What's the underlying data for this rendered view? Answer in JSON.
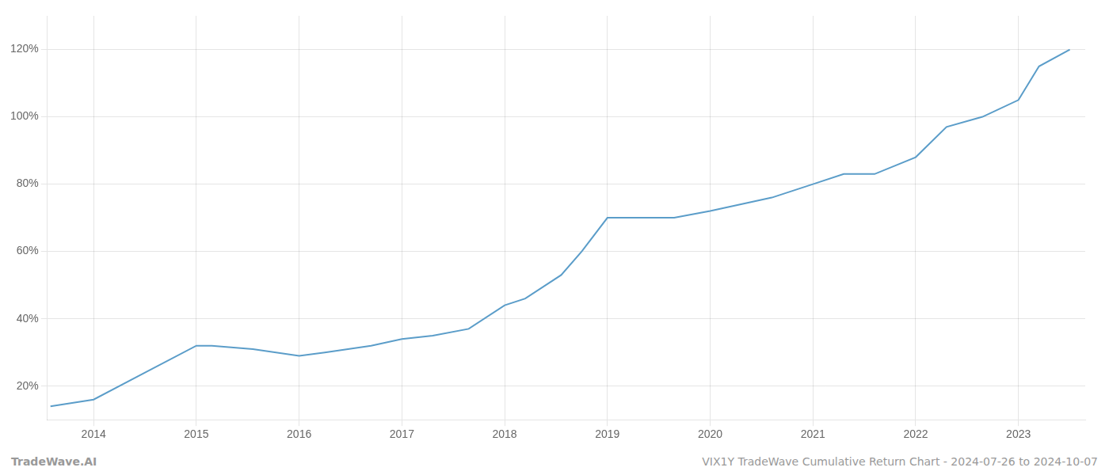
{
  "chart_data": {
    "type": "line",
    "x": [
      2013.58,
      2014.0,
      2014.5,
      2015.0,
      2015.15,
      2015.55,
      2016.0,
      2016.25,
      2016.7,
      2017.0,
      2017.3,
      2017.65,
      2018.0,
      2018.2,
      2018.55,
      2018.75,
      2019.0,
      2019.3,
      2019.65,
      2020.0,
      2020.3,
      2020.6,
      2021.0,
      2021.3,
      2021.6,
      2022.0,
      2022.3,
      2022.65,
      2023.0,
      2023.2,
      2023.5
    ],
    "values": [
      14,
      16,
      24,
      32,
      32,
      31,
      29,
      30,
      32,
      34,
      35,
      37,
      44,
      46,
      53,
      60,
      70,
      70,
      70,
      72,
      74,
      76,
      80,
      83,
      83,
      88,
      97,
      100,
      105,
      115,
      120
    ],
    "color": "#5b9dc9",
    "xlim": [
      2013.55,
      2023.65
    ],
    "xticks": [
      2014,
      2015,
      2016,
      2017,
      2018,
      2019,
      2020,
      2021,
      2022,
      2023
    ],
    "ylim": [
      10,
      130
    ],
    "yticks": [
      {
        "value": 20,
        "label": "20%"
      },
      {
        "value": 40,
        "label": "40%"
      },
      {
        "value": 60,
        "label": "60%"
      },
      {
        "value": 80,
        "label": "80%"
      },
      {
        "value": 100,
        "label": "100%"
      },
      {
        "value": 120,
        "label": "120%"
      }
    ],
    "grid": true,
    "annotations": [
      "TradeWave.AI",
      "VIX1Y TradeWave Cumulative Return Chart - 2024-07-26 to 2024-10-07"
    ]
  }
}
